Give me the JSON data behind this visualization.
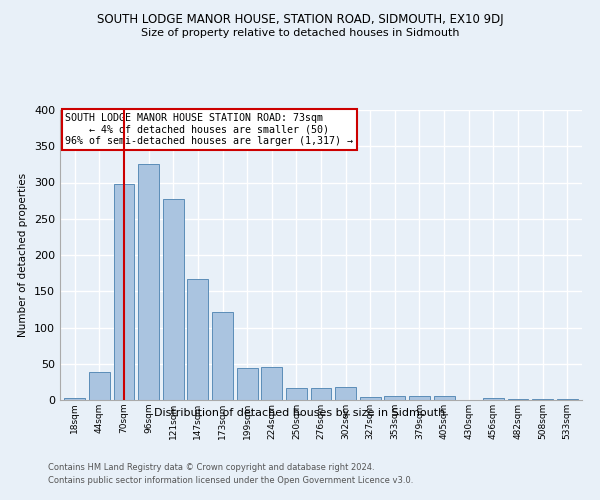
{
  "title": "SOUTH LODGE MANOR HOUSE, STATION ROAD, SIDMOUTH, EX10 9DJ",
  "subtitle": "Size of property relative to detached houses in Sidmouth",
  "xlabel": "Distribution of detached houses by size in Sidmouth",
  "ylabel": "Number of detached properties",
  "categories": [
    "18sqm",
    "44sqm",
    "70sqm",
    "96sqm",
    "121sqm",
    "147sqm",
    "173sqm",
    "199sqm",
    "224sqm",
    "250sqm",
    "276sqm",
    "302sqm",
    "327sqm",
    "353sqm",
    "379sqm",
    "405sqm",
    "430sqm",
    "456sqm",
    "482sqm",
    "508sqm",
    "533sqm"
  ],
  "values": [
    3,
    38,
    298,
    325,
    277,
    167,
    121,
    44,
    46,
    16,
    16,
    18,
    4,
    5,
    5,
    5,
    0,
    3,
    1,
    2,
    1
  ],
  "bar_color": "#aac4e0",
  "bar_edge_color": "#5b8db8",
  "background_color": "#e8f0f8",
  "grid_color": "#ffffff",
  "vline_x_index": 2,
  "vline_color": "#cc0000",
  "annotation_title": "SOUTH LODGE MANOR HOUSE STATION ROAD: 73sqm",
  "annotation_line1": "    ← 4% of detached houses are smaller (50)",
  "annotation_line2": "96% of semi-detached houses are larger (1,317) →",
  "annotation_box_color": "#ffffff",
  "annotation_box_edge": "#cc0000",
  "footer1": "Contains HM Land Registry data © Crown copyright and database right 2024.",
  "footer2": "Contains public sector information licensed under the Open Government Licence v3.0.",
  "ylim": [
    0,
    400
  ],
  "yticks": [
    0,
    50,
    100,
    150,
    200,
    250,
    300,
    350,
    400
  ]
}
